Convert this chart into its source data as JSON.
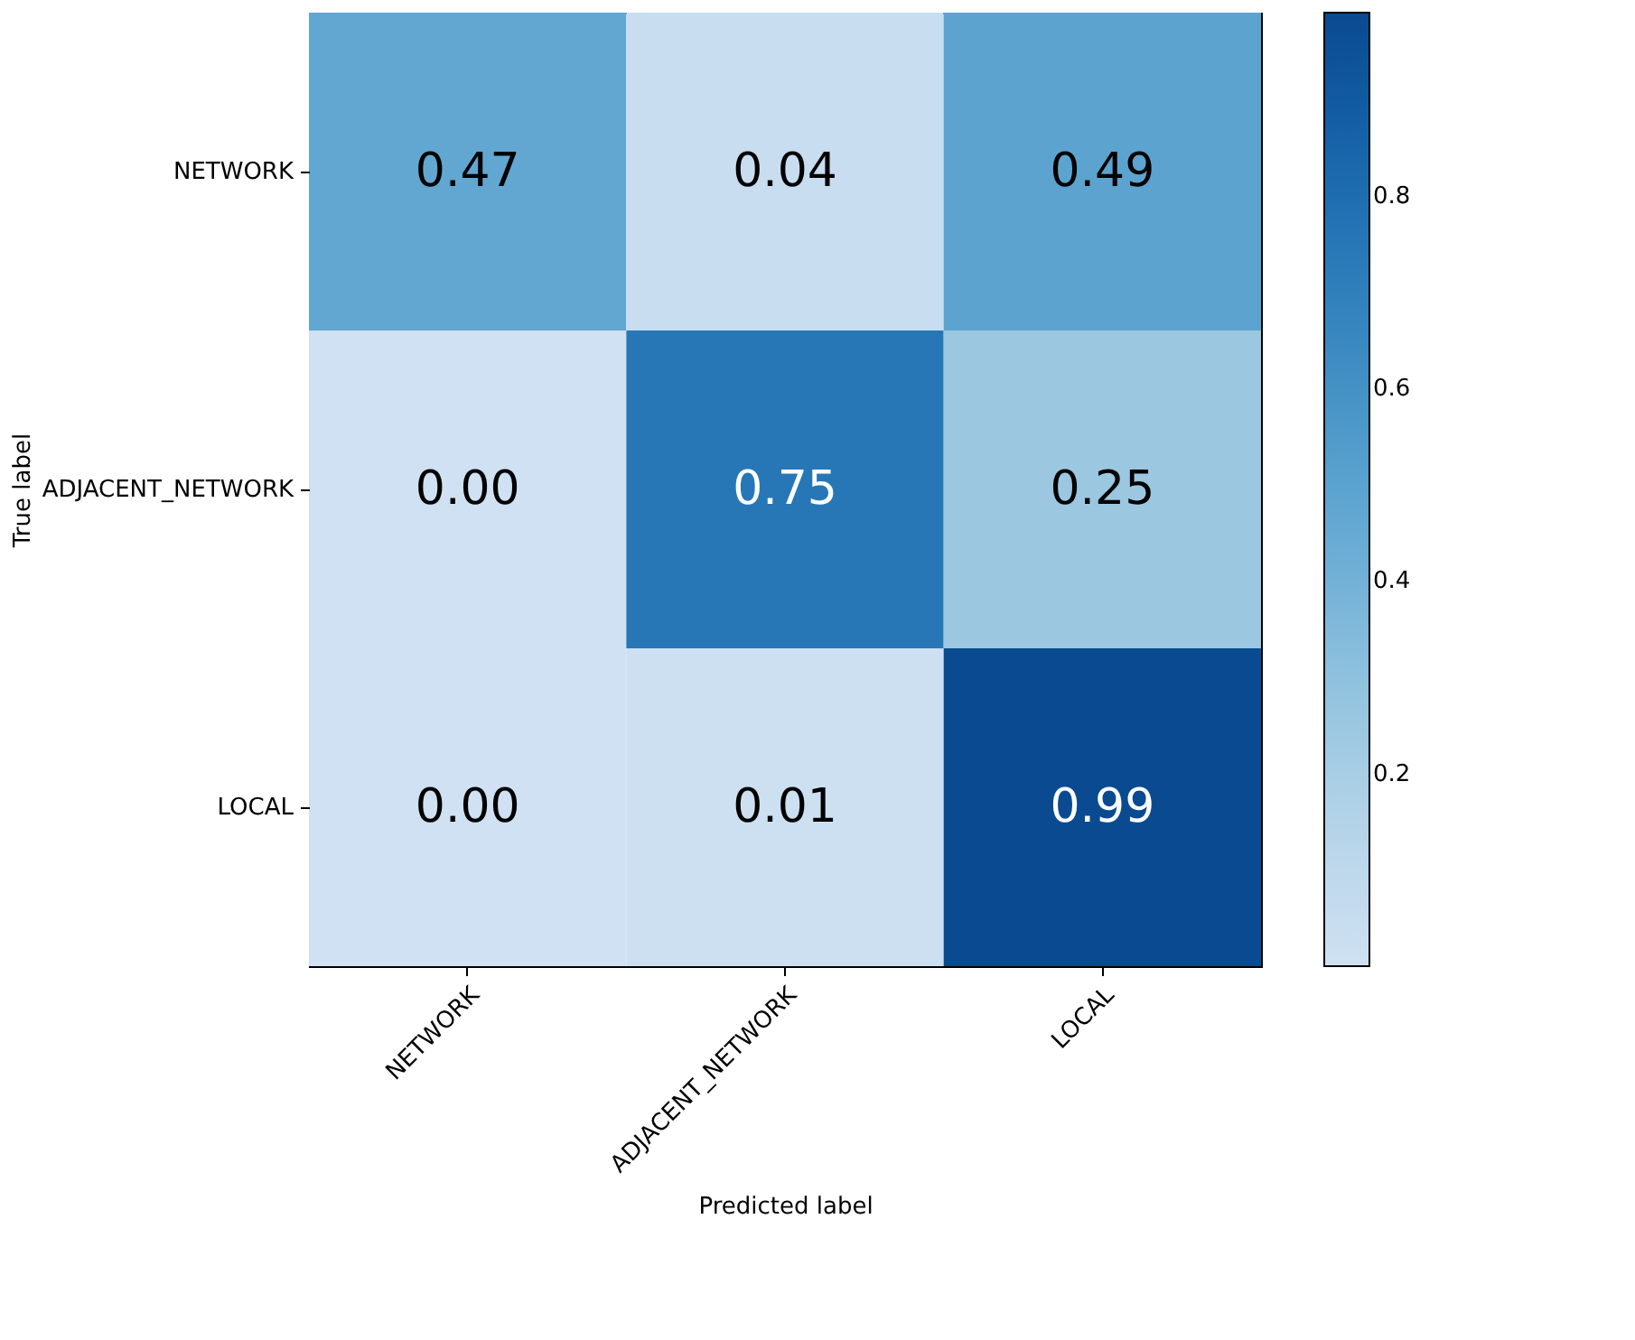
{
  "chart_data": {
    "type": "heatmap",
    "xlabel": "Predicted label",
    "ylabel": "True label",
    "categories": [
      "NETWORK",
      "ADJACENT_NETWORK",
      "LOCAL"
    ],
    "y_categories": [
      "NETWORK",
      "ADJACENT_NETWORK",
      "LOCAL"
    ],
    "cells": [
      [
        0.47,
        0.04,
        0.49
      ],
      [
        0.0,
        0.75,
        0.25
      ],
      [
        0.0,
        0.01,
        0.99
      ]
    ],
    "cell_labels": [
      [
        "0.47",
        "0.04",
        "0.49"
      ],
      [
        "0.00",
        "0.75",
        "0.25"
      ],
      [
        "0.00",
        "0.01",
        "0.99"
      ]
    ],
    "clim": [
      0,
      0.99
    ],
    "cticks": [
      0.2,
      0.4,
      0.6,
      0.8
    ]
  }
}
